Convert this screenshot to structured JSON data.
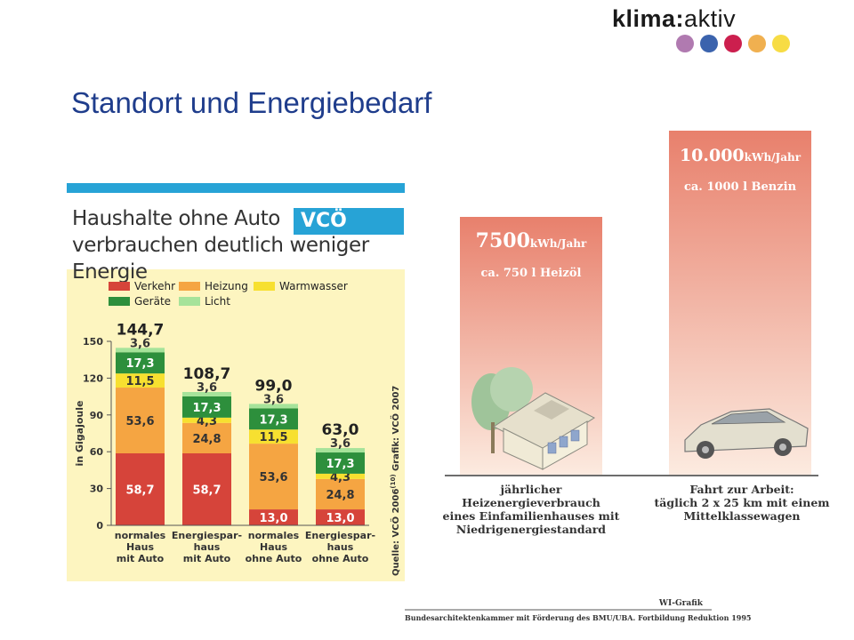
{
  "logo": {
    "bold": "klima",
    "sep": ":",
    "light": "aktiv",
    "dots": [
      "#b07ab0",
      "#3b63ad",
      "#cc1f4e",
      "#f0b050",
      "#f7dc45"
    ]
  },
  "page_title": "Standort und Energiebedarf",
  "chart_data": [
    {
      "type": "bar",
      "stacked": true,
      "title_lines": [
        "Haushalte ohne Auto",
        "verbrauchen deutlich weniger Energie"
      ],
      "brand": "VCÖ",
      "ylabel": "in Gigajoule",
      "ylim": [
        0,
        150
      ],
      "yticks": [
        0,
        30,
        60,
        90,
        120,
        150
      ],
      "source": "Quelle: VCÖ 2006",
      "source_sup": "(10)",
      "credit": "Grafik: VCÖ 2007",
      "legend": [
        {
          "name": "Verkehr",
          "color": "#d6443a"
        },
        {
          "name": "Heizung",
          "color": "#f5a542"
        },
        {
          "name": "Warmwasser",
          "color": "#f7e030"
        },
        {
          "name": "Geräte",
          "color": "#2d8f3c"
        },
        {
          "name": "Licht",
          "color": "#a6e39a"
        }
      ],
      "categories": [
        [
          "normales",
          "Haus",
          "mit Auto"
        ],
        [
          "Energiespar-",
          "haus",
          "mit Auto"
        ],
        [
          "normales",
          "Haus",
          "ohne Auto"
        ],
        [
          "Energiespar-",
          "haus",
          "ohne Auto"
        ]
      ],
      "totals": [
        "144,7",
        "108,7",
        "99,0",
        "63,0"
      ],
      "total_values": [
        144.7,
        108.7,
        99.0,
        63.0
      ],
      "series": [
        {
          "name": "Verkehr",
          "values": [
            58.7,
            58.7,
            13.0,
            13.0
          ],
          "labels": [
            "58,7",
            "58,7",
            "13,0",
            "13,0"
          ]
        },
        {
          "name": "Heizung",
          "values": [
            53.6,
            24.8,
            53.6,
            24.8
          ],
          "labels": [
            "53,6",
            "24,8",
            "53,6",
            "24,8"
          ]
        },
        {
          "name": "Warmwasser",
          "values": [
            11.5,
            4.3,
            11.5,
            4.3
          ],
          "labels": [
            "11,5",
            "4,3",
            "11,5",
            "4,3"
          ]
        },
        {
          "name": "Geräte",
          "values": [
            17.3,
            17.3,
            17.3,
            17.3
          ],
          "labels": [
            "17,3",
            "17,3",
            "17,3",
            "17,3"
          ]
        },
        {
          "name": "Licht",
          "values": [
            3.6,
            3.6,
            3.6,
            3.6
          ],
          "labels": [
            "3,6",
            "3,6",
            "3,6",
            "3,6"
          ]
        }
      ]
    },
    {
      "type": "bar",
      "bars": [
        {
          "value_big": "7500",
          "unit": "kWh/Jahr",
          "equiv": "ca. 750 l Heizöl",
          "kwh": 7500,
          "caption": [
            "jährlicher",
            "Heizenergieverbrauch",
            "eines Einfamilienhauses mit",
            "Niedrigenergiestandard"
          ]
        },
        {
          "value_big": "10.000",
          "unit": "kWh/Jahr",
          "equiv": "ca. 1000 l Benzin",
          "kwh": 10000,
          "caption": [
            "Fahrt zur Arbeit:",
            "täglich 2 x 25 km mit einem",
            "Mittelklassewagen"
          ]
        }
      ],
      "credit": "WI-Grafik",
      "source": "Bundesarchitektenkammer mit Förderung des BMU/UBA. Fortbildung Reduktion 1995",
      "bar_color_top": "#e8806c",
      "bar_color_bottom": "#fcebe0"
    }
  ]
}
